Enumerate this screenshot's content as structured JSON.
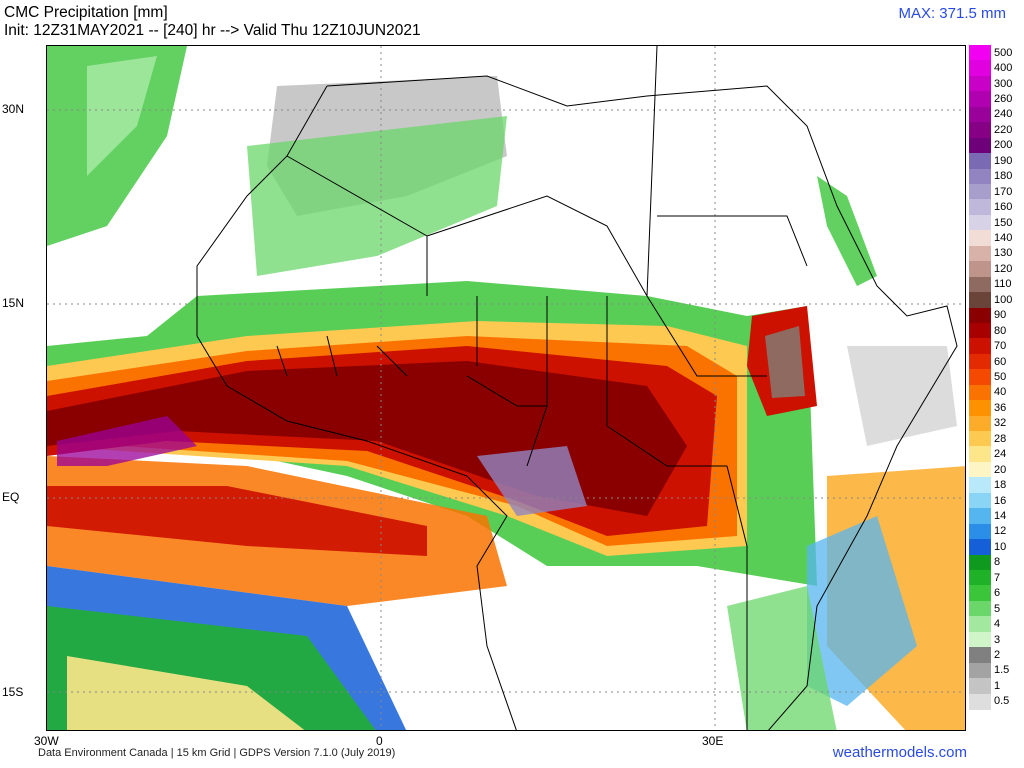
{
  "header": {
    "title": "CMC Precipitation [mm]",
    "subtitle": "Init: 12Z31MAY2021 -- [240] hr --> Valid Thu 12Z10JUN2021",
    "max_label": "MAX: 371.5 mm"
  },
  "map": {
    "latitude_labels": [
      "30N",
      "15N",
      "EQ",
      "15S"
    ],
    "longitude_labels": [
      "30W",
      "0",
      "30E"
    ],
    "region": "West / Central / East Africa and tropical Atlantic",
    "rain_band": "heavy precipitation belt across the Sahel and Congo basin, 0–15N"
  },
  "legend": {
    "levels": [
      {
        "label": "500",
        "color": "#f200f2"
      },
      {
        "label": "400",
        "color": "#e000e0"
      },
      {
        "label": "300",
        "color": "#c800c8"
      },
      {
        "label": "260",
        "color": "#b000b0"
      },
      {
        "label": "240",
        "color": "#9a009a"
      },
      {
        "label": "220",
        "color": "#860086"
      },
      {
        "label": "200",
        "color": "#6e007a"
      },
      {
        "label": "190",
        "color": "#7a6ab4"
      },
      {
        "label": "180",
        "color": "#9184c0"
      },
      {
        "label": "170",
        "color": "#a89ecc"
      },
      {
        "label": "160",
        "color": "#c0b8da"
      },
      {
        "label": "150",
        "color": "#d8d2e6"
      },
      {
        "label": "140",
        "color": "#f1dcd6"
      },
      {
        "label": "130",
        "color": "#d8b2a8"
      },
      {
        "label": "120",
        "color": "#bf948a"
      },
      {
        "label": "110",
        "color": "#8f6a60"
      },
      {
        "label": "100",
        "color": "#6a4438"
      },
      {
        "label": "90",
        "color": "#8a0000"
      },
      {
        "label": "80",
        "color": "#a80000"
      },
      {
        "label": "70",
        "color": "#cc1100"
      },
      {
        "label": "60",
        "color": "#e42a00"
      },
      {
        "label": "50",
        "color": "#f54800"
      },
      {
        "label": "40",
        "color": "#fa7300"
      },
      {
        "label": "36",
        "color": "#fd9100"
      },
      {
        "label": "32",
        "color": "#fdac2a"
      },
      {
        "label": "28",
        "color": "#fdc951"
      },
      {
        "label": "24",
        "color": "#fde58a"
      },
      {
        "label": "20",
        "color": "#fdf6c4"
      },
      {
        "label": "18",
        "color": "#b7e9fb"
      },
      {
        "label": "16",
        "color": "#8ad4f5"
      },
      {
        "label": "14",
        "color": "#55b5ef"
      },
      {
        "label": "12",
        "color": "#2b8ee8"
      },
      {
        "label": "10",
        "color": "#1560d8"
      },
      {
        "label": "8",
        "color": "#0f9a1f"
      },
      {
        "label": "7",
        "color": "#1fb128"
      },
      {
        "label": "6",
        "color": "#3bc53a"
      },
      {
        "label": "5",
        "color": "#6bd76a"
      },
      {
        "label": "4",
        "color": "#a2e89e"
      },
      {
        "label": "3",
        "color": "#cff5c8"
      },
      {
        "label": "2",
        "color": "#808080"
      },
      {
        "label": "1.5",
        "color": "#a3a3a3"
      },
      {
        "label": "1",
        "color": "#c4c4c4"
      },
      {
        "label": "0.5",
        "color": "#dedede"
      }
    ]
  },
  "footer": {
    "credit": "Data Environment Canada | 15 km Grid | GDPS Version 7.1.0 (July 2019)",
    "site": "weathermodels.com"
  }
}
